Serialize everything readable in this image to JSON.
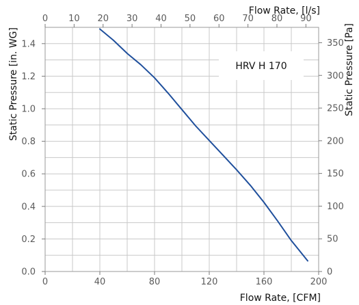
{
  "chart_data": {
    "type": "line",
    "xlabel": "Flow Rate, [CFM]",
    "ylabel": "Static Pressure [in. WG]",
    "x2label": "Flow Rate, [l/s]",
    "y2label": "Static Pressure [Pa]",
    "xlim": [
      0,
      200
    ],
    "ylim": [
      0,
      1.5
    ],
    "x2lim": [
      0,
      94.4
    ],
    "y2lim": [
      0,
      373.5
    ],
    "x_ticks": [
      "0",
      "40",
      "80",
      "120",
      "160",
      "200"
    ],
    "y_ticks": [
      "0.0",
      "0.2",
      "0.4",
      "0.6",
      "0.8",
      "1.0",
      "1.2",
      "1.4"
    ],
    "x2_ticks": [
      "0",
      "10",
      "20",
      "30",
      "40",
      "50",
      "60",
      "70",
      "80",
      "90"
    ],
    "y2_ticks": [
      "0",
      "50",
      "100",
      "150",
      "200",
      "250",
      "300",
      "350"
    ],
    "legend_position": "top-right",
    "grid": true,
    "series": [
      {
        "name": "HRV H 170",
        "color": "#1f4f9c",
        "x": [
          40,
          50,
          60,
          70,
          80,
          90,
          100,
          110,
          120,
          130,
          140,
          150,
          160,
          170,
          180,
          192
        ],
        "y": [
          1.49,
          1.42,
          1.34,
          1.27,
          1.19,
          1.095,
          0.995,
          0.895,
          0.805,
          0.715,
          0.625,
          0.53,
          0.425,
          0.31,
          0.19,
          0.065
        ]
      }
    ]
  }
}
